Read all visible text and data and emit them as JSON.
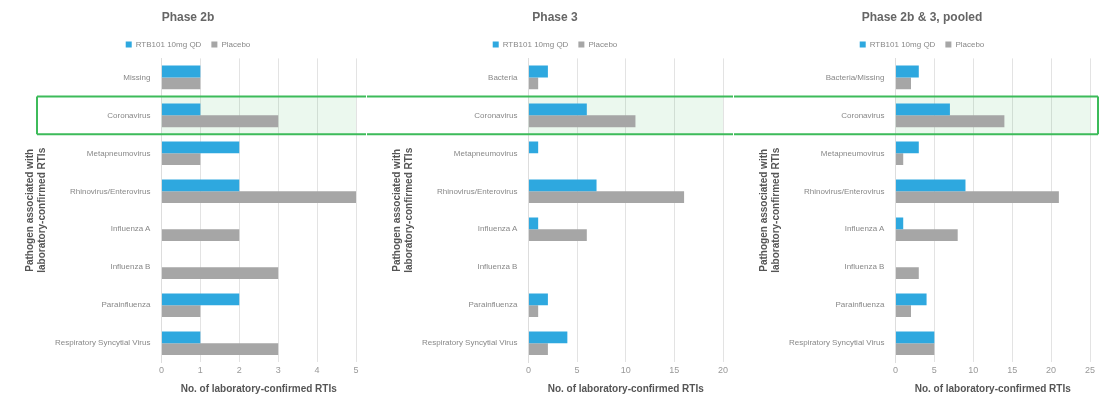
{
  "chart_data": [
    {
      "type": "bar",
      "orientation": "horizontal",
      "title": "Phase 2b",
      "xlabel": "No. of laboratory-confirmed RTIs",
      "ylabel": "Pathogen associated with\nlaboratory-confirmed RTIs",
      "categories": [
        "Missing",
        "Coronavirus",
        "Metapneumovirus",
        "Rhinovirus/Enterovirus",
        "Influenza A",
        "Influenza B",
        "Parainfluenza",
        "Respiratory Syncytial Virus"
      ],
      "series": [
        {
          "name": "RTB101 10mg QD",
          "color": "#2ea8df",
          "values": [
            1,
            1,
            2,
            2,
            0,
            0,
            2,
            1
          ]
        },
        {
          "name": "Placebo",
          "color": "#a6a6a6",
          "values": [
            1,
            3,
            1,
            5,
            2,
            3,
            1,
            3
          ]
        }
      ],
      "xlim": [
        0,
        5
      ],
      "xticks": [
        0,
        1,
        2,
        3,
        4,
        5
      ],
      "grid": "x",
      "legend": "top",
      "bands": [
        {
          "axis": "y",
          "from": "Coronavirus",
          "to": "Coronavirus",
          "color": "#3dbb5a"
        }
      ]
    },
    {
      "type": "bar",
      "orientation": "horizontal",
      "title": "Phase 3",
      "xlabel": "No. of laboratory-confirmed RTIs",
      "ylabel": "Pathogen associated with\nlaboratory-confirmed RTIs",
      "categories": [
        "Bacteria",
        "Coronavirus",
        "Metapneumovirus",
        "Rhinovirus/Enterovirus",
        "Influenza A",
        "Influenza B",
        "Parainfluenza",
        "Respiratory Syncytial Virus"
      ],
      "series": [
        {
          "name": "RTB101 10mg QD",
          "color": "#2ea8df",
          "values": [
            2,
            6,
            1,
            7,
            1,
            0,
            2,
            4
          ]
        },
        {
          "name": "Placebo",
          "color": "#a6a6a6",
          "values": [
            1,
            11,
            0,
            16,
            6,
            0,
            1,
            2
          ]
        }
      ],
      "xlim": [
        0,
        20
      ],
      "xticks": [
        0,
        5,
        10,
        15,
        20
      ],
      "grid": "x",
      "legend": "top",
      "bands": [
        {
          "axis": "y",
          "from": "Coronavirus",
          "to": "Coronavirus",
          "color": "#3dbb5a"
        }
      ]
    },
    {
      "type": "bar",
      "orientation": "horizontal",
      "title": "Phase 2b & 3, pooled",
      "xlabel": "No. of laboratory-confirmed RTIs",
      "ylabel": "Pathogen associated with\nlaboratory-confirmed RTIs",
      "categories": [
        "Bacteria/Missing",
        "Coronavirus",
        "Metapneumovirus",
        "Rhinovirus/Enterovirus",
        "Influenza A",
        "Influenza B",
        "Parainfluenza",
        "Respiratory Syncytial Virus"
      ],
      "series": [
        {
          "name": "RTB101 10mg QD",
          "color": "#2ea8df",
          "values": [
            3,
            7,
            3,
            9,
            1,
            0,
            4,
            5
          ]
        },
        {
          "name": "Placebo",
          "color": "#a6a6a6",
          "values": [
            2,
            14,
            1,
            21,
            8,
            3,
            2,
            5
          ]
        }
      ],
      "xlim": [
        0,
        25
      ],
      "xticks": [
        0,
        5,
        10,
        15,
        20,
        25
      ],
      "grid": "x",
      "legend": "top",
      "bands": [
        {
          "axis": "y",
          "from": "Coronavirus",
          "to": "Coronavirus",
          "color": "#3dbb5a"
        }
      ]
    }
  ]
}
